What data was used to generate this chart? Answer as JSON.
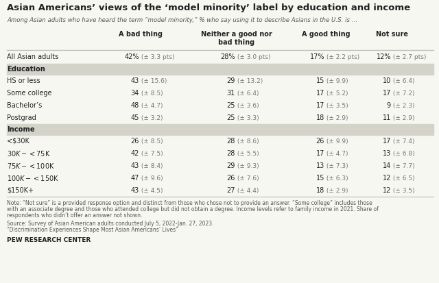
{
  "title": "Asian Americans’ views of the ‘model minority’ label by education and income",
  "subtitle": "Among Asian adults who have heard the term “model minority,” % who say using it to describe Asians in the U.S. is …",
  "columns": [
    "A bad thing",
    "Neither a good nor\nbad thing",
    "A good thing",
    "Not sure"
  ],
  "rows": [
    {
      "label": "All Asian adults",
      "is_total": true,
      "is_section": false,
      "values": [
        [
          "42%",
          " (± 3.3 pts)"
        ],
        [
          "28%",
          " (± 3.0 pts)"
        ],
        [
          "17%",
          " (± 2.2 pts)"
        ],
        [
          "12%",
          " (± 2.7 pts)"
        ]
      ]
    },
    {
      "label": "Education",
      "is_total": false,
      "is_section": true,
      "values": [
        [
          "",
          ""
        ],
        [
          "",
          ""
        ],
        [
          "",
          ""
        ],
        [
          "",
          ""
        ]
      ]
    },
    {
      "label": "HS or less",
      "is_total": false,
      "is_section": false,
      "values": [
        [
          "43",
          " (± 15.6)"
        ],
        [
          "29",
          " (± 13.2)"
        ],
        [
          "15",
          " (± 9.9)"
        ],
        [
          "10",
          " (± 6.4)"
        ]
      ]
    },
    {
      "label": "Some college",
      "is_total": false,
      "is_section": false,
      "values": [
        [
          "34",
          " (± 8.5)"
        ],
        [
          "31",
          " (± 6.4)"
        ],
        [
          "17",
          " (± 5.2)"
        ],
        [
          "17",
          " (± 7.2)"
        ]
      ]
    },
    {
      "label": "Bachelor’s",
      "is_total": false,
      "is_section": false,
      "values": [
        [
          "48",
          " (± 4.7)"
        ],
        [
          "25",
          " (± 3.6)"
        ],
        [
          "17",
          " (± 3.5)"
        ],
        [
          "9",
          " (± 2.3)"
        ]
      ]
    },
    {
      "label": "Postgrad",
      "is_total": false,
      "is_section": false,
      "values": [
        [
          "45",
          " (± 3.2)"
        ],
        [
          "25",
          " (± 3.3)"
        ],
        [
          "18",
          " (± 2.9)"
        ],
        [
          "11",
          " (± 2.9)"
        ]
      ]
    },
    {
      "label": "Income",
      "is_total": false,
      "is_section": true,
      "values": [
        [
          "",
          ""
        ],
        [
          "",
          ""
        ],
        [
          "",
          ""
        ],
        [
          "",
          ""
        ]
      ]
    },
    {
      "label": "<$30K",
      "is_total": false,
      "is_section": false,
      "values": [
        [
          "26",
          " (± 8.5)"
        ],
        [
          "28",
          " (± 8.6)"
        ],
        [
          "26",
          " (± 9.9)"
        ],
        [
          "17",
          " (± 7.4)"
        ]
      ]
    },
    {
      "label": "$30K-<$75K",
      "is_total": false,
      "is_section": false,
      "values": [
        [
          "42",
          " (± 7.5)"
        ],
        [
          "28",
          " (± 5.5)"
        ],
        [
          "17",
          " (± 4.7)"
        ],
        [
          "13",
          " (± 6.8)"
        ]
      ]
    },
    {
      "label": "$75K-<$100K",
      "is_total": false,
      "is_section": false,
      "values": [
        [
          "43",
          " (± 8.4)"
        ],
        [
          "29",
          " (± 9.3)"
        ],
        [
          "13",
          " (± 7.3)"
        ],
        [
          "14",
          " (± 7.7)"
        ]
      ]
    },
    {
      "label": "$100K-<$150K",
      "is_total": false,
      "is_section": false,
      "values": [
        [
          "47",
          " (± 9.6)"
        ],
        [
          "26",
          " (± 7.6)"
        ],
        [
          "15",
          " (± 6.3)"
        ],
        [
          "12",
          " (± 6.5)"
        ]
      ]
    },
    {
      "label": "$150K+",
      "is_total": false,
      "is_section": false,
      "values": [
        [
          "43",
          " (± 4.5)"
        ],
        [
          "27",
          " (± 4.4)"
        ],
        [
          "18",
          " (± 2.9)"
        ],
        [
          "12",
          " (± 3.5)"
        ]
      ]
    }
  ],
  "note1": "Note: “Not sure” is a provided response option and distinct from those who chose not to provide an answer. “Some college” includes those",
  "note2": "with an associate degree and those who attended college but did not obtain a degree. Income levels refer to family income in 2021. Share of",
  "note3": "respondents who didn’t offer an answer not shown.",
  "source1": "Source: Survey of Asian American adults conducted July 5, 2022-Jan. 27, 2023.",
  "source2": "“Discrimination Experiences Shape Most Asian Americans’ Lives”",
  "branding": "PEW RESEARCH CENTER",
  "bg_color": "#f7f7f2",
  "section_bg": "#d3d3ca",
  "text_color": "#222222",
  "margin_color": "#777777",
  "subtitle_color": "#555555",
  "note_color": "#555555"
}
